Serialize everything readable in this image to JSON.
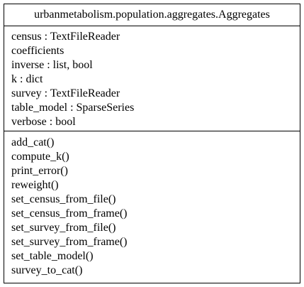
{
  "class_diagram": {
    "class_name": "urbanmetabolism.population.aggregates.Aggregates",
    "attributes": [
      "census : TextFileReader",
      "coefficients",
      "inverse : list, bool",
      "k : dict",
      "survey : TextFileReader",
      "table_model : SparseSeries",
      "verbose : bool"
    ],
    "methods": [
      "add_cat()",
      "compute_k()",
      "print_error()",
      "reweight()",
      "set_census_from_file()",
      "set_census_from_frame()",
      "set_survey_from_file()",
      "set_survey_from_frame()",
      "set_table_model()",
      "survey_to_cat()"
    ]
  }
}
